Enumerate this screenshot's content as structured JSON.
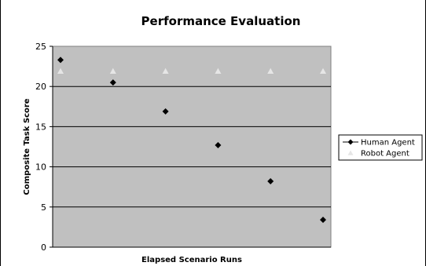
{
  "chart_data": {
    "type": "scatter",
    "title": "Performance Evaluation",
    "xlabel": "Elapsed Scenario Runs",
    "ylabel": "Composite Task Score",
    "ylim": [
      0,
      25
    ],
    "yticks": [
      0,
      5,
      10,
      15,
      20,
      25
    ],
    "x": [
      1,
      2,
      3,
      4,
      5,
      6
    ],
    "grid": true,
    "legend_position": "right",
    "plot_background": "#c0c0c0",
    "series": [
      {
        "name": "Human Agent",
        "marker": "diamond",
        "color": "#000000",
        "values": [
          23.3,
          20.5,
          16.9,
          12.7,
          8.2,
          3.4
        ]
      },
      {
        "name": "Robot Agent",
        "marker": "triangle",
        "color": "#e6e6e6",
        "values": [
          21.9,
          21.9,
          21.9,
          21.9,
          21.9,
          21.9
        ]
      }
    ]
  }
}
